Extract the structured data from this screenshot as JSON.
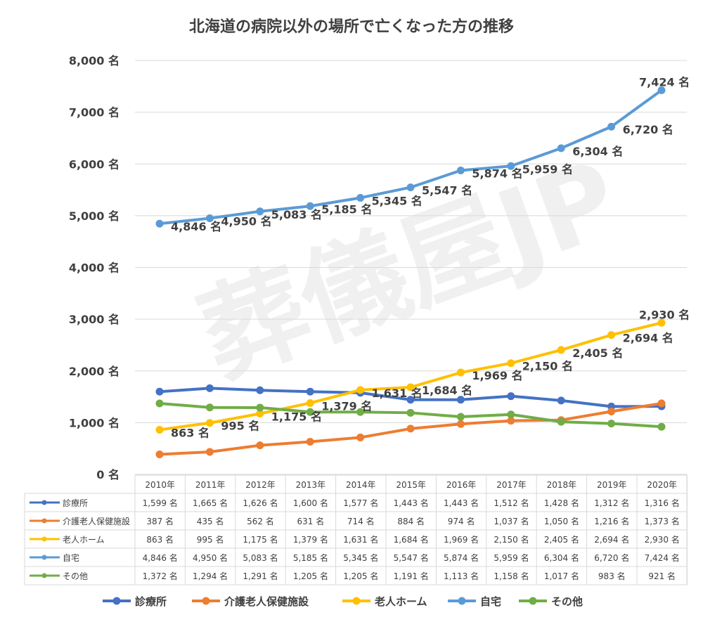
{
  "chart_data": {
    "type": "line",
    "title": "北海道の病院以外の場所で亡くなった方の推移",
    "watermark": "葬儀屋JP",
    "unit": "名",
    "categories": [
      "2010年",
      "2011年",
      "2012年",
      "2013年",
      "2014年",
      "2015年",
      "2016年",
      "2017年",
      "2018年",
      "2019年",
      "2020年"
    ],
    "ylim": [
      0,
      8000
    ],
    "yticks": [
      0,
      1000,
      2000,
      3000,
      4000,
      5000,
      6000,
      7000,
      8000
    ],
    "ytick_labels": [
      "0 名",
      "1,000 名",
      "2,000 名",
      "3,000 名",
      "4,000 名",
      "5,000 名",
      "6,000 名",
      "7,000 名",
      "8,000 名"
    ],
    "grid": true,
    "legend_position": "bottom",
    "series": [
      {
        "name": "診療所",
        "color": "#4472C4",
        "labels": false,
        "values": [
          1599,
          1665,
          1626,
          1600,
          1577,
          1443,
          1443,
          1512,
          1428,
          1312,
          1316
        ],
        "table": [
          "1,599 名",
          "1,665 名",
          "1,626 名",
          "1,600 名",
          "1,577 名",
          "1,443 名",
          "1,443 名",
          "1,512 名",
          "1,428 名",
          "1,312 名",
          "1,316 名"
        ]
      },
      {
        "name": "介護老人保健施設",
        "color": "#ED7D31",
        "labels": false,
        "values": [
          387,
          435,
          562,
          631,
          714,
          884,
          974,
          1037,
          1050,
          1216,
          1373
        ],
        "table": [
          "387 名",
          "435 名",
          "562 名",
          "631 名",
          "714 名",
          "884 名",
          "974 名",
          "1,037 名",
          "1,050 名",
          "1,216 名",
          "1,373 名"
        ]
      },
      {
        "name": "老人ホーム",
        "color": "#FFC000",
        "labels": true,
        "values": [
          863,
          995,
          1175,
          1379,
          1631,
          1684,
          1969,
          2150,
          2405,
          2694,
          2930
        ],
        "table": [
          "863 名",
          "995 名",
          "1,175 名",
          "1,379 名",
          "1,631 名",
          "1,684 名",
          "1,969 名",
          "2,150 名",
          "2,405 名",
          "2,694 名",
          "2,930 名"
        ]
      },
      {
        "name": "自宅",
        "color": "#5B9BD5",
        "labels": true,
        "values": [
          4846,
          4950,
          5083,
          5185,
          5345,
          5547,
          5874,
          5959,
          6304,
          6720,
          7424
        ],
        "table": [
          "4,846 名",
          "4,950 名",
          "5,083 名",
          "5,185 名",
          "5,345 名",
          "5,547 名",
          "5,874 名",
          "5,959 名",
          "6,304 名",
          "6,720 名",
          "7,424 名"
        ]
      },
      {
        "name": "その他",
        "color": "#70AD47",
        "labels": false,
        "values": [
          1372,
          1294,
          1291,
          1205,
          1205,
          1191,
          1113,
          1158,
          1017,
          983,
          921
        ],
        "table": [
          "1,372 名",
          "1,294 名",
          "1,291 名",
          "1,205 名",
          "1,205 名",
          "1,191 名",
          "1,113 名",
          "1,158 名",
          "1,017 名",
          "983 名",
          "921 名"
        ]
      }
    ]
  }
}
